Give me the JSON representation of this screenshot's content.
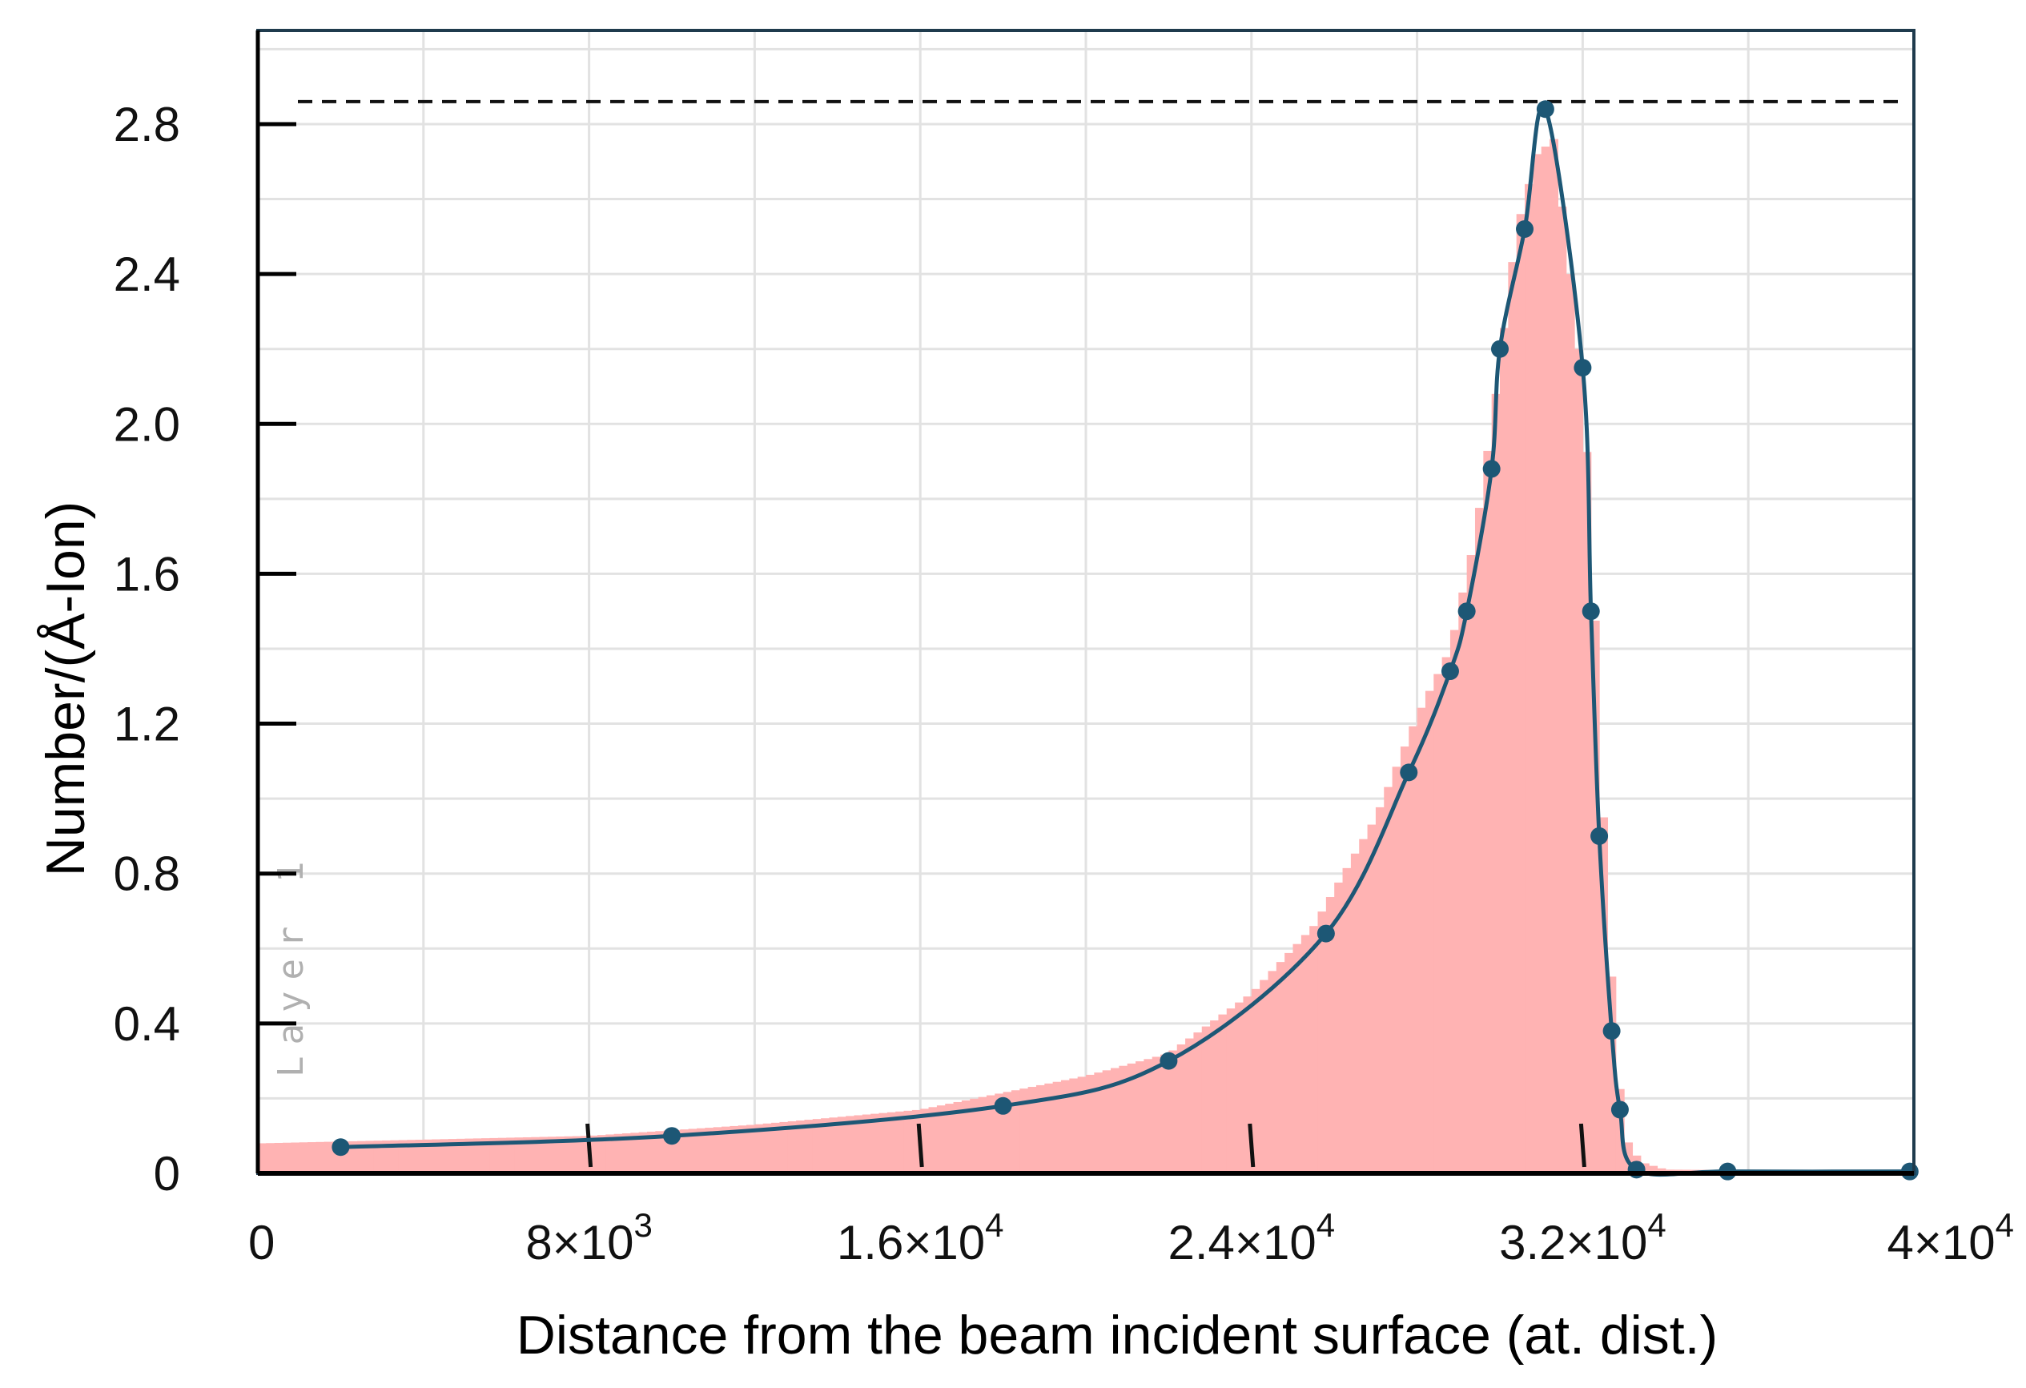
{
  "chart_data": {
    "type": "line",
    "title": "",
    "xlabel": "Distance from the beam incident surface (at. dist.)",
    "ylabel": "Number/(Å-Ion)",
    "xlim": [
      0,
      40000
    ],
    "ylim": [
      0,
      3.05
    ],
    "grid": true,
    "x_ticks": [
      {
        "value": 0,
        "label": "0",
        "exp": ""
      },
      {
        "value": 8000,
        "label": "8×10",
        "exp": "3"
      },
      {
        "value": 16000,
        "label": "1.6×10",
        "exp": "4"
      },
      {
        "value": 24000,
        "label": "2.4×10",
        "exp": "4"
      },
      {
        "value": 32000,
        "label": "3.2×10",
        "exp": "4"
      },
      {
        "value": 40000,
        "label": "4×10",
        "exp": "4"
      }
    ],
    "y_ticks": [
      {
        "value": 0,
        "label": "0"
      },
      {
        "value": 0.4,
        "label": "0.4"
      },
      {
        "value": 0.8,
        "label": "0.8"
      },
      {
        "value": 1.2,
        "label": "1.2"
      },
      {
        "value": 1.6,
        "label": "1.6"
      },
      {
        "value": 2.0,
        "label": "2.0"
      },
      {
        "value": 2.4,
        "label": "2.4"
      },
      {
        "value": 2.8,
        "label": "2.8"
      }
    ],
    "reference_line": {
      "y": 2.86,
      "style": "dashed"
    },
    "layer_tick_marks_x": [
      8000,
      16000,
      24000,
      32000
    ],
    "annotation": "Layer 1",
    "colors": {
      "histogram": "#ffb3b3",
      "curve": "#1d5775",
      "points": "#1d5775",
      "axis_frame": "#1f3b4d",
      "grid": "#e2e2e2",
      "reference_line": "#111111"
    },
    "series": [
      {
        "type": "line-with-markers",
        "points": [
          [
            2000,
            0.07
          ],
          [
            10000,
            0.1
          ],
          [
            18000,
            0.18
          ],
          [
            22000,
            0.3
          ],
          [
            25800,
            0.64
          ],
          [
            27800,
            1.07
          ],
          [
            28800,
            1.34
          ],
          [
            29200,
            1.5
          ],
          [
            29800,
            1.88
          ],
          [
            30000,
            2.2
          ],
          [
            30600,
            2.52
          ],
          [
            31100,
            2.84
          ],
          [
            32000,
            2.15
          ],
          [
            32200,
            1.5
          ],
          [
            32400,
            0.9
          ],
          [
            32700,
            0.38
          ],
          [
            32900,
            0.17
          ],
          [
            33300,
            0.01
          ],
          [
            35500,
            0.005
          ],
          [
            39900,
            0.005
          ]
        ]
      },
      {
        "type": "histogram",
        "bin_width": 200,
        "profile_points": [
          [
            0,
            0.08
          ],
          [
            4000,
            0.09
          ],
          [
            8000,
            0.1
          ],
          [
            12000,
            0.13
          ],
          [
            16000,
            0.17
          ],
          [
            20000,
            0.26
          ],
          [
            22000,
            0.32
          ],
          [
            24000,
            0.48
          ],
          [
            25500,
            0.66
          ],
          [
            27000,
            0.95
          ],
          [
            28000,
            1.22
          ],
          [
            28800,
            1.4
          ],
          [
            29400,
            1.7
          ],
          [
            29900,
            2.08
          ],
          [
            30400,
            2.52
          ],
          [
            30900,
            2.72
          ],
          [
            31300,
            2.76
          ],
          [
            31700,
            2.4
          ],
          [
            32000,
            2.1
          ],
          [
            32200,
            1.75
          ],
          [
            32400,
            1.2
          ],
          [
            32600,
            0.7
          ],
          [
            32800,
            0.35
          ],
          [
            33000,
            0.1
          ],
          [
            33400,
            0.03
          ],
          [
            34000,
            0.01
          ],
          [
            40000,
            0.005
          ]
        ]
      }
    ]
  }
}
